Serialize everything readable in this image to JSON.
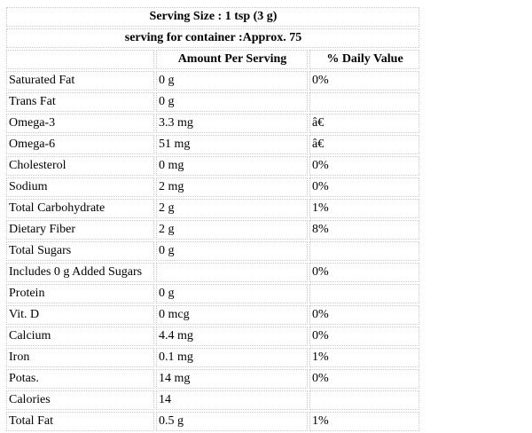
{
  "header": {
    "serving_size": "Serving Size : 1 tsp (3 g)",
    "servings_per_container": "serving for container :Approx. 75"
  },
  "columns": {
    "name": "",
    "amount": "Amount Per Serving",
    "daily_value": "% Daily Value"
  },
  "rows": [
    {
      "name": "Saturated Fat",
      "amount": "0 g",
      "dv": "0%"
    },
    {
      "name": "Trans Fat",
      "amount": "0 g",
      "dv": ""
    },
    {
      "name": "Omega-3",
      "amount": "3.3 mg",
      "dv": "â€"
    },
    {
      "name": "Omega-6",
      "amount": "51 mg",
      "dv": "â€"
    },
    {
      "name": "Cholesterol",
      "amount": "0 mg",
      "dv": "0%"
    },
    {
      "name": "Sodium",
      "amount": "2 mg",
      "dv": "0%"
    },
    {
      "name": "Total Carbohydrate",
      "amount": "2 g",
      "dv": "1%"
    },
    {
      "name": "Dietary Fiber",
      "amount": "2 g",
      "dv": "8%"
    },
    {
      "name": "Total Sugars",
      "amount": "0 g",
      "dv": ""
    },
    {
      "name": "Includes 0 g Added Sugars",
      "amount": "",
      "dv": "0%"
    },
    {
      "name": "Protein",
      "amount": "0 g",
      "dv": ""
    },
    {
      "name": "Vit. D",
      "amount": "0 mcg",
      "dv": "0%"
    },
    {
      "name": "Calcium",
      "amount": "4.4 mg",
      "dv": "0%"
    },
    {
      "name": "Iron",
      "amount": "0.1 mg",
      "dv": "1%"
    },
    {
      "name": "Potas.",
      "amount": "14 mg",
      "dv": "0%"
    },
    {
      "name": "Calories",
      "amount": "14",
      "dv": ""
    },
    {
      "name": "Total Fat",
      "amount": "0.5 g",
      "dv": "1%"
    }
  ]
}
